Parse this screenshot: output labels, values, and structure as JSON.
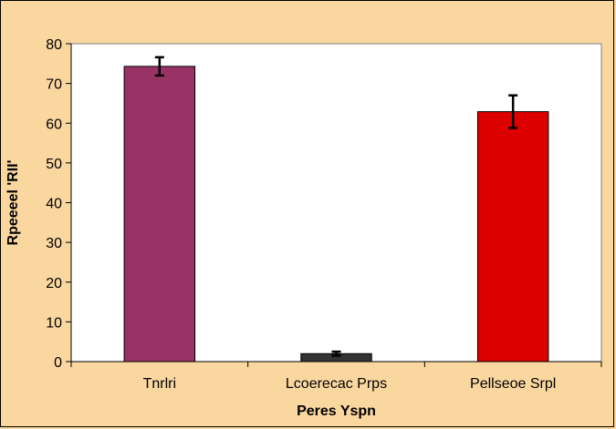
{
  "chart_data": {
    "type": "bar",
    "title": "",
    "xlabel": "Peres Yspn",
    "ylabel": "Rpeeeel 'RII'",
    "categories": [
      "Tnrlri",
      "Lcoerecac Prps",
      "Pellseoe Srpl"
    ],
    "values": [
      74.3,
      2.0,
      62.9
    ],
    "errors": [
      2.3,
      0.5,
      4.1
    ],
    "colors": [
      "#993366",
      "#333333",
      "#DD0000"
    ],
    "ylim": [
      0,
      80
    ],
    "yticks": [
      0,
      10,
      20,
      30,
      40,
      50,
      60,
      70,
      80
    ],
    "grid": false,
    "legend": "none",
    "plot_background": "#FFFFFF",
    "page_background": "#FBD7A0"
  }
}
